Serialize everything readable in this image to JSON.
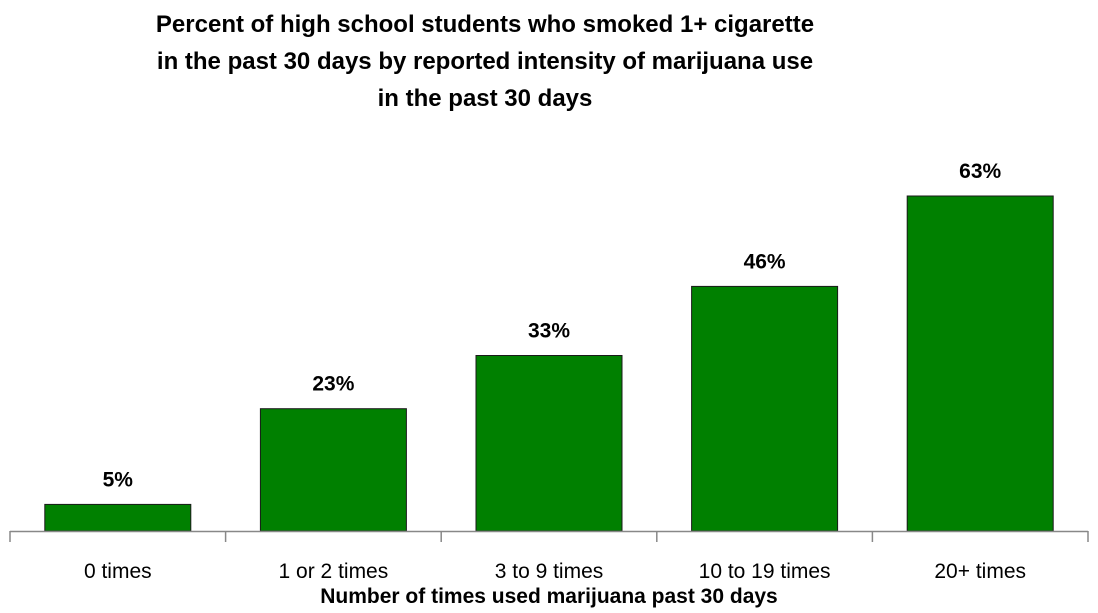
{
  "chart_data": {
    "type": "bar",
    "title": "Percent of high school students who smoked 1+ cigarette\nin the past 30 days by reported intensity of marijuana use\nin the past 30 days",
    "xlabel": "Number of times used marijuana past 30 days",
    "ylabel": "",
    "categories": [
      "0 times",
      "1 or 2 times",
      "3 to 9 times",
      "10 to 19 times",
      "20+ times"
    ],
    "values": [
      5,
      23,
      33,
      46,
      63
    ],
    "data_labels": [
      "5%",
      "23%",
      "33%",
      "46%",
      "63%"
    ],
    "unit": "%",
    "ylim": [
      0,
      63
    ],
    "grid": false,
    "legend": "none",
    "bar_color": "#008000",
    "bar_edge_color": "#1a1a1a"
  }
}
